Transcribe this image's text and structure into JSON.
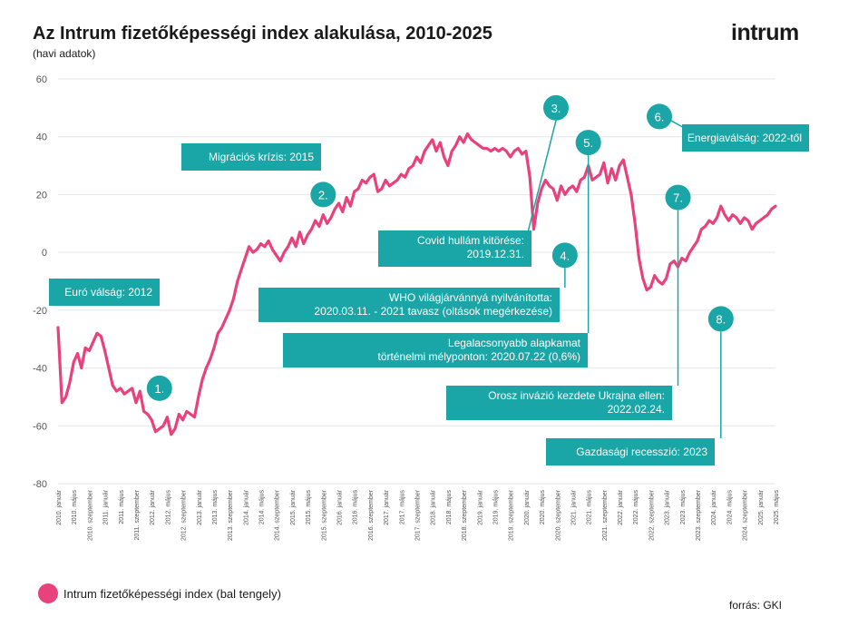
{
  "header": {
    "title": "Az Intrum fizetőképességi index alakulása, 2010-2025",
    "subtitle": "(havi adatok)",
    "logo": "intrum"
  },
  "legend": {
    "label": "Intrum fizetőképességi index (bal tengely)"
  },
  "footer": {
    "source": "forrás: GKI"
  },
  "colors": {
    "line": "#e8417b",
    "annotation": "#1aa6a6",
    "grid": "#e6e6e6"
  },
  "chart_data": {
    "type": "line",
    "title": "Az Intrum fizetőképességi index alakulása, 2010-2025",
    "subtitle": "(havi adatok)",
    "xlabel": "",
    "ylabel": "",
    "ylim": [
      -80,
      60
    ],
    "yticks": [
      -80,
      -60,
      -40,
      -20,
      0,
      20,
      40,
      60
    ],
    "grid": true,
    "legend_position": "bottom-left",
    "x_tick_labels": [
      "2010. január",
      "2010. május",
      "2010. szeptember",
      "2011. január",
      "2011. május",
      "2011. szeptember",
      "2012. január",
      "2012. május",
      "2012. szeptember",
      "2013. január",
      "2013. május",
      "2013. szeptember",
      "2014. január",
      "2014. május",
      "2014. szeptember",
      "2015. január",
      "2015. május",
      "2015. szeptember",
      "2016. január",
      "2016. május",
      "2016. szeptember",
      "2017. január",
      "2017. május",
      "2017. szeptember",
      "2018. január",
      "2018. május",
      "2018. szeptember",
      "2019. január",
      "2019. május",
      "2019. szeptember",
      "2020. január",
      "2020. május",
      "2020. szeptember",
      "2021. január",
      "2021. május",
      "2021. szeptember",
      "2022. január",
      "2022. május",
      "2022. szeptember",
      "2023. január",
      "2023. május",
      "2023. szeptember",
      "2024. január",
      "2024. május",
      "2024. szeptember",
      "2025. január",
      "2025. május"
    ],
    "series": [
      {
        "name": "Intrum fizetőképességi index (bal tengely)",
        "points": [
          [
            "2010-01",
            -26
          ],
          [
            "2010-02",
            -52
          ],
          [
            "2010-03",
            -50
          ],
          [
            "2010-04",
            -45
          ],
          [
            "2010-05",
            -38
          ],
          [
            "2010-06",
            -35
          ],
          [
            "2010-07",
            -40
          ],
          [
            "2010-08",
            -33
          ],
          [
            "2010-09",
            -34
          ],
          [
            "2010-10",
            -31
          ],
          [
            "2010-11",
            -28
          ],
          [
            "2010-12",
            -29
          ],
          [
            "2011-01",
            -34
          ],
          [
            "2011-02",
            -40
          ],
          [
            "2011-03",
            -46
          ],
          [
            "2011-04",
            -48
          ],
          [
            "2011-05",
            -47
          ],
          [
            "2011-06",
            -49
          ],
          [
            "2011-07",
            -48
          ],
          [
            "2011-08",
            -47
          ],
          [
            "2011-09",
            -52
          ],
          [
            "2011-10",
            -48
          ],
          [
            "2011-11",
            -55
          ],
          [
            "2011-12",
            -56
          ],
          [
            "2012-01",
            -58
          ],
          [
            "2012-02",
            -62
          ],
          [
            "2012-03",
            -61
          ],
          [
            "2012-04",
            -60
          ],
          [
            "2012-05",
            -57
          ],
          [
            "2012-06",
            -63
          ],
          [
            "2012-07",
            -61
          ],
          [
            "2012-08",
            -56
          ],
          [
            "2012-09",
            -58
          ],
          [
            "2012-10",
            -55
          ],
          [
            "2012-11",
            -56
          ],
          [
            "2012-12",
            -57
          ],
          [
            "2013-01",
            -50
          ],
          [
            "2013-02",
            -44
          ],
          [
            "2013-03",
            -40
          ],
          [
            "2013-04",
            -37
          ],
          [
            "2013-05",
            -33
          ],
          [
            "2013-06",
            -28
          ],
          [
            "2013-07",
            -26
          ],
          [
            "2013-08",
            -23
          ],
          [
            "2013-09",
            -20
          ],
          [
            "2013-10",
            -16
          ],
          [
            "2013-11",
            -10
          ],
          [
            "2013-12",
            -6
          ],
          [
            "2014-01",
            -2
          ],
          [
            "2014-02",
            2
          ],
          [
            "2014-03",
            0
          ],
          [
            "2014-04",
            1
          ],
          [
            "2014-05",
            3
          ],
          [
            "2014-06",
            2
          ],
          [
            "2014-07",
            4
          ],
          [
            "2014-08",
            1
          ],
          [
            "2014-09",
            -1
          ],
          [
            "2014-10",
            -3
          ],
          [
            "2014-11",
            0
          ],
          [
            "2014-12",
            2
          ],
          [
            "2015-01",
            5
          ],
          [
            "2015-02",
            2
          ],
          [
            "2015-03",
            7
          ],
          [
            "2015-04",
            3
          ],
          [
            "2015-05",
            6
          ],
          [
            "2015-06",
            8
          ],
          [
            "2015-07",
            11
          ],
          [
            "2015-08",
            9
          ],
          [
            "2015-09",
            13
          ],
          [
            "2015-10",
            10
          ],
          [
            "2015-11",
            12
          ],
          [
            "2015-12",
            15
          ],
          [
            "2016-01",
            17
          ],
          [
            "2016-02",
            14
          ],
          [
            "2016-03",
            19
          ],
          [
            "2016-04",
            16
          ],
          [
            "2016-05",
            21
          ],
          [
            "2016-06",
            22
          ],
          [
            "2016-07",
            25
          ],
          [
            "2016-08",
            24
          ],
          [
            "2016-09",
            26
          ],
          [
            "2016-10",
            27
          ],
          [
            "2016-11",
            21
          ],
          [
            "2016-12",
            22
          ],
          [
            "2017-01",
            25
          ],
          [
            "2017-02",
            23
          ],
          [
            "2017-03",
            24
          ],
          [
            "2017-04",
            25
          ],
          [
            "2017-05",
            27
          ],
          [
            "2017-06",
            26
          ],
          [
            "2017-07",
            29
          ],
          [
            "2017-08",
            30
          ],
          [
            "2017-09",
            33
          ],
          [
            "2017-10",
            31
          ],
          [
            "2017-11",
            35
          ],
          [
            "2017-12",
            37
          ],
          [
            "2018-01",
            39
          ],
          [
            "2018-02",
            35
          ],
          [
            "2018-03",
            38
          ],
          [
            "2018-04",
            33
          ],
          [
            "2018-05",
            30
          ],
          [
            "2018-06",
            35
          ],
          [
            "2018-07",
            37
          ],
          [
            "2018-08",
            40
          ],
          [
            "2018-09",
            38
          ],
          [
            "2018-10",
            41
          ],
          [
            "2018-11",
            39
          ],
          [
            "2018-12",
            38
          ],
          [
            "2019-01",
            37
          ],
          [
            "2019-02",
            36
          ],
          [
            "2019-03",
            36
          ],
          [
            "2019-04",
            35
          ],
          [
            "2019-05",
            36
          ],
          [
            "2019-06",
            35
          ],
          [
            "2019-07",
            36
          ],
          [
            "2019-08",
            35
          ],
          [
            "2019-09",
            33
          ],
          [
            "2019-10",
            35
          ],
          [
            "2019-11",
            36
          ],
          [
            "2019-12",
            34
          ],
          [
            "2020-01",
            35
          ],
          [
            "2020-02",
            26
          ],
          [
            "2020-03",
            8
          ],
          [
            "2020-04",
            17
          ],
          [
            "2020-05",
            22
          ],
          [
            "2020-06",
            25
          ],
          [
            "2020-07",
            23
          ],
          [
            "2020-08",
            22
          ],
          [
            "2020-09",
            18
          ],
          [
            "2020-10",
            23
          ],
          [
            "2020-11",
            20
          ],
          [
            "2020-12",
            22
          ],
          [
            "2021-01",
            23
          ],
          [
            "2021-02",
            21
          ],
          [
            "2021-03",
            25
          ],
          [
            "2021-04",
            26
          ],
          [
            "2021-05",
            30
          ],
          [
            "2021-06",
            25
          ],
          [
            "2021-07",
            26
          ],
          [
            "2021-08",
            27
          ],
          [
            "2021-09",
            31
          ],
          [
            "2021-10",
            24
          ],
          [
            "2021-11",
            29
          ],
          [
            "2021-12",
            25
          ],
          [
            "2022-01",
            30
          ],
          [
            "2022-02",
            32
          ],
          [
            "2022-03",
            26
          ],
          [
            "2022-04",
            20
          ],
          [
            "2022-05",
            10
          ],
          [
            "2022-06",
            -2
          ],
          [
            "2022-07",
            -9
          ],
          [
            "2022-08",
            -13
          ],
          [
            "2022-09",
            -12
          ],
          [
            "2022-10",
            -8
          ],
          [
            "2022-11",
            -10
          ],
          [
            "2022-12",
            -11
          ],
          [
            "2023-01",
            -9
          ],
          [
            "2023-02",
            -4
          ],
          [
            "2023-03",
            -3
          ],
          [
            "2023-04",
            -5
          ],
          [
            "2023-05",
            -2
          ],
          [
            "2023-06",
            -3
          ],
          [
            "2023-07",
            0
          ],
          [
            "2023-08",
            2
          ],
          [
            "2023-09",
            4
          ],
          [
            "2023-10",
            8
          ],
          [
            "2023-11",
            9
          ],
          [
            "2023-12",
            11
          ],
          [
            "2024-01",
            10
          ],
          [
            "2024-02",
            12
          ],
          [
            "2024-03",
            16
          ],
          [
            "2024-04",
            13
          ],
          [
            "2024-05",
            11
          ],
          [
            "2024-06",
            13
          ],
          [
            "2024-07",
            12
          ],
          [
            "2024-08",
            10
          ],
          [
            "2024-09",
            12
          ],
          [
            "2024-10",
            11
          ],
          [
            "2024-11",
            8
          ],
          [
            "2024-12",
            10
          ],
          [
            "2025-01",
            11
          ],
          [
            "2025-02",
            12
          ],
          [
            "2025-03",
            13
          ],
          [
            "2025-04",
            15
          ],
          [
            "2025-05",
            16
          ]
        ]
      }
    ],
    "annotations": [
      {
        "num": "1.",
        "text": [
          "Euró válság: 2012"
        ],
        "x": "2012-03",
        "circle_y": -47,
        "box": "left-mid"
      },
      {
        "num": "2.",
        "text": [
          "Migrációs krízis: 2015"
        ],
        "x": "2015-09",
        "circle_y": 20,
        "box": "upper"
      },
      {
        "num": "3.",
        "text": [
          "Covid hullám kitörése:",
          "2019.12.31."
        ],
        "x": "2020-02",
        "circle_y": 50,
        "box": "mid"
      },
      {
        "num": "4.",
        "text": [
          "WHO világjárvánnyá nyilvánította:",
          "2020.03.11. - 2021 tavasz (oltások megérkezése)"
        ],
        "x": "2020-11",
        "circle_y": -1,
        "box": "mid"
      },
      {
        "num": "5.",
        "text": [
          "Legalacsonyabb alapkamat",
          "történelmi mélyponton: 2020.07.22 (0,6%)"
        ],
        "x": "2021-05",
        "circle_y": 38,
        "box": "mid"
      },
      {
        "num": "6.",
        "text": [
          "Energiaválság: 2022-től"
        ],
        "x": "2022-08",
        "circle_y": 47,
        "box": "upper"
      },
      {
        "num": "7.",
        "text": [
          "Orosz invázió kezdete Ukrajna ellen:",
          "2022.02.24."
        ],
        "x": "2023-04",
        "circle_y": 19,
        "box": "low"
      },
      {
        "num": "8.",
        "text": [
          "Gazdasági recesszió: 2023"
        ],
        "x": "2024-03",
        "circle_y": -23,
        "box": "low"
      }
    ]
  }
}
